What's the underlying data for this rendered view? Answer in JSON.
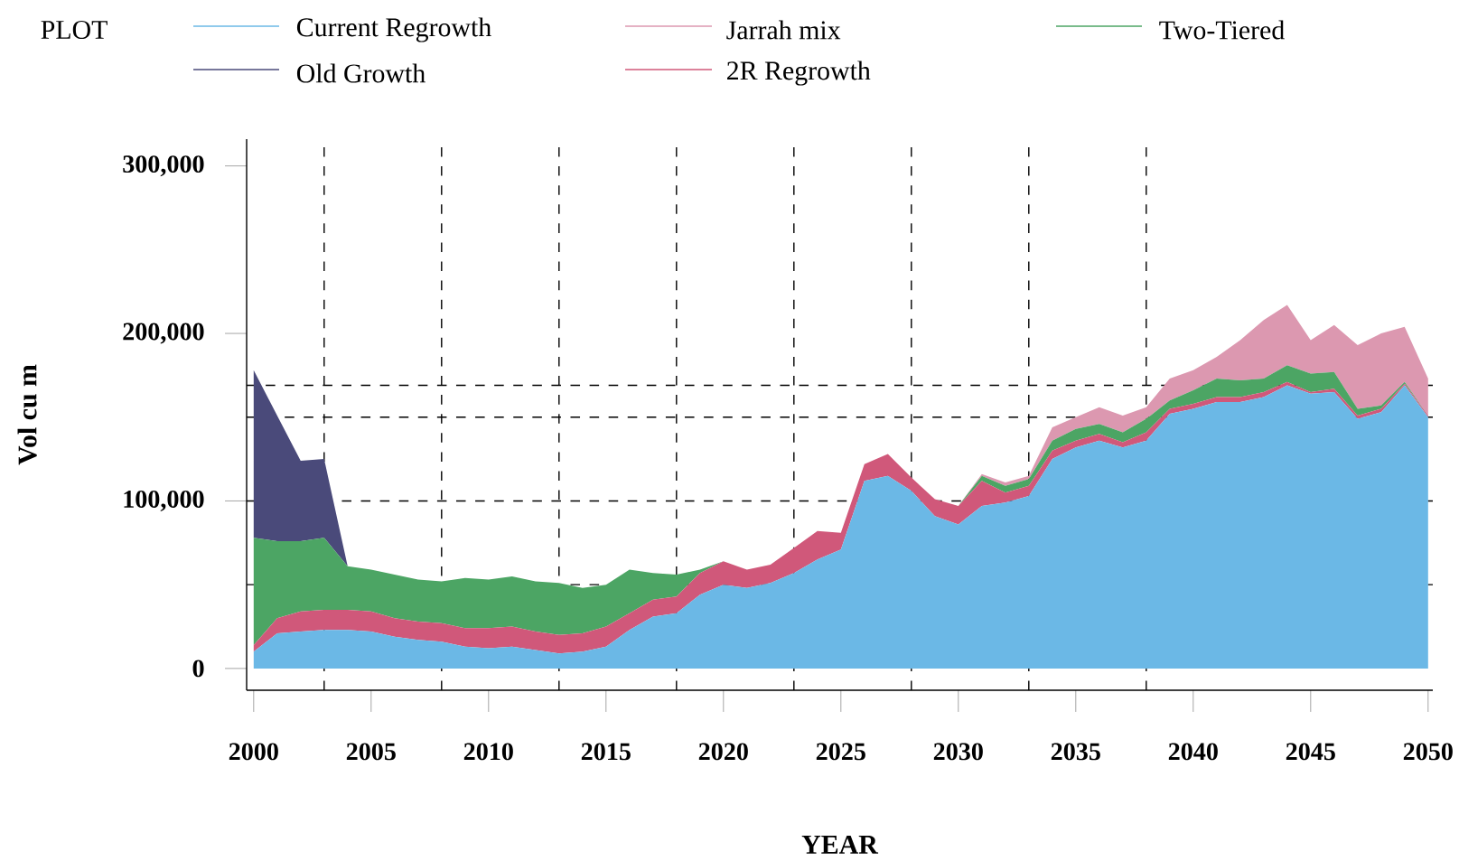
{
  "chart_data": {
    "type": "area",
    "stacked": true,
    "legend_title": "PLOT",
    "legend": "top",
    "xlabel": "YEAR",
    "ylabel": "Vol cu m",
    "x": [
      2000,
      2001,
      2002,
      2003,
      2004,
      2005,
      2006,
      2007,
      2008,
      2009,
      2010,
      2011,
      2012,
      2013,
      2014,
      2015,
      2016,
      2017,
      2018,
      2019,
      2020,
      2021,
      2022,
      2023,
      2024,
      2025,
      2026,
      2027,
      2028,
      2029,
      2030,
      2031,
      2032,
      2033,
      2034,
      2035,
      2036,
      2037,
      2038,
      2039,
      2040,
      2041,
      2042,
      2043,
      2044,
      2045,
      2046,
      2047,
      2048,
      2049,
      2050
    ],
    "series": [
      {
        "name": "Current Regrowth",
        "color": "#6bb8e6",
        "values": [
          10000,
          21000,
          22000,
          23000,
          23000,
          22000,
          19000,
          17000,
          16000,
          13000,
          12000,
          13000,
          11000,
          9000,
          10000,
          13000,
          23000,
          31000,
          33000,
          44000,
          50000,
          48000,
          51000,
          57000,
          65000,
          71000,
          112000,
          115000,
          106000,
          91000,
          86000,
          97000,
          99000,
          103000,
          125000,
          132000,
          136000,
          132000,
          136000,
          152000,
          155000,
          159000,
          159000,
          162000,
          169000,
          164000,
          165000,
          149000,
          153000,
          169000,
          150000
        ]
      },
      {
        "name": "2R Regrowth",
        "color": "#d0587a",
        "values": [
          4000,
          9000,
          12000,
          12000,
          12000,
          12000,
          11000,
          11000,
          11000,
          11000,
          12000,
          12000,
          11000,
          11000,
          11000,
          12000,
          10000,
          10000,
          10000,
          13000,
          14000,
          11000,
          11000,
          15000,
          17000,
          10000,
          10000,
          13000,
          8000,
          10000,
          11000,
          15000,
          6000,
          6000,
          5000,
          4000,
          4000,
          3000,
          5000,
          3000,
          3000,
          3000,
          3000,
          3000,
          2000,
          1000,
          2000,
          2000,
          2000,
          1000,
          1000
        ]
      },
      {
        "name": "Two-Tiered",
        "color": "#4ca564",
        "values": [
          64000,
          46000,
          42000,
          43000,
          26000,
          25000,
          26000,
          25000,
          25000,
          30000,
          29000,
          30000,
          30000,
          31000,
          27000,
          25000,
          26000,
          16000,
          13000,
          2000,
          0,
          0,
          0,
          0,
          0,
          0,
          0,
          0,
          0,
          0,
          0,
          3000,
          4000,
          4000,
          6000,
          7000,
          6000,
          6000,
          8000,
          5000,
          8000,
          11000,
          10000,
          8000,
          10000,
          11000,
          10000,
          4000,
          2000,
          1000,
          0
        ]
      },
      {
        "name": "Jarrah mix",
        "color": "#dc98b0",
        "values": [
          0,
          0,
          0,
          0,
          0,
          0,
          0,
          0,
          0,
          0,
          0,
          0,
          0,
          0,
          0,
          0,
          0,
          0,
          0,
          0,
          0,
          0,
          0,
          0,
          0,
          0,
          0,
          0,
          0,
          0,
          0,
          1000,
          2000,
          2000,
          8000,
          7000,
          10000,
          10000,
          7000,
          13000,
          12000,
          13000,
          24000,
          35000,
          36000,
          20000,
          28000,
          38000,
          43000,
          33000,
          22000
        ]
      },
      {
        "name": "Old Growth",
        "color": "#4a4a7a",
        "x": [
          2000,
          2001,
          2002,
          2003,
          2004
        ],
        "values": [
          100000,
          75000,
          48000,
          47000,
          0
        ]
      }
    ],
    "xlim": [
      1999.7,
      2050.2
    ],
    "ylim": [
      -13000,
      316000
    ],
    "xticks": [
      2000,
      2005,
      2010,
      2015,
      2020,
      2025,
      2030,
      2035,
      2040,
      2045,
      2050
    ],
    "yticks": [
      0,
      {
        "value": 100000,
        "label": "100,000"
      },
      {
        "value": 200000,
        "label": "200,000"
      },
      {
        "value": 300000,
        "label": "300,000"
      }
    ],
    "ref_lines": [
      {
        "axis": "y",
        "value": 50000,
        "line_style": "dashed",
        "color": "#000000"
      },
      {
        "axis": "y",
        "value": 100000,
        "line_style": "dashed",
        "color": "#000000"
      },
      {
        "axis": "y",
        "value": 150000,
        "line_style": "dashed",
        "color": "#000000"
      },
      {
        "axis": "y",
        "value": 169000,
        "line_style": "dashed",
        "color": "#000000"
      },
      {
        "axis": "x",
        "value": 2003,
        "line_style": "dashed",
        "color": "#000000"
      },
      {
        "axis": "x",
        "value": 2008,
        "line_style": "dashed",
        "color": "#000000"
      },
      {
        "axis": "x",
        "value": 2013,
        "line_style": "dashed",
        "color": "#000000"
      },
      {
        "axis": "x",
        "value": 2018,
        "line_style": "dashed",
        "color": "#000000"
      },
      {
        "axis": "x",
        "value": 2023,
        "line_style": "dashed",
        "color": "#000000"
      },
      {
        "axis": "x",
        "value": 2028,
        "line_style": "dashed",
        "color": "#000000"
      },
      {
        "axis": "x",
        "value": 2033,
        "line_style": "dashed",
        "color": "#000000"
      },
      {
        "axis": "x",
        "value": 2038,
        "line_style": "dashed",
        "color": "#000000"
      }
    ]
  }
}
